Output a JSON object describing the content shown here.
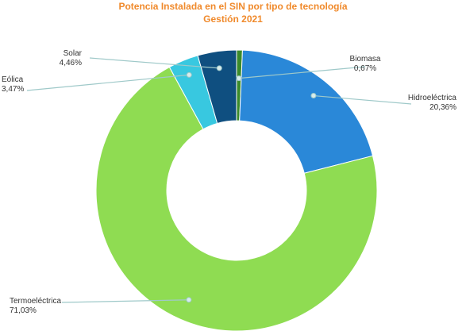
{
  "chart_data": {
    "type": "pie",
    "donut": true,
    "title": "Potencia Instalada en el SIN por tipo de tecnología",
    "subtitle": "Gestión 2021",
    "legend": "none",
    "slices": [
      {
        "name": "Biomasa",
        "value": 0.67,
        "value_label": "0,67%",
        "color": "#3a8a2a"
      },
      {
        "name": "Hidroeléctrica",
        "value": 20.36,
        "value_label": "20,36%",
        "color": "#2a88d8"
      },
      {
        "name": "Termoeléctrica",
        "value": 71.03,
        "value_label": "71,03%",
        "color": "#8fdc52"
      },
      {
        "name": "Eólica",
        "value": 3.47,
        "value_label": "3,47%",
        "color": "#38c8e0"
      },
      {
        "name": "Solar",
        "value": 4.46,
        "value_label": "4,46%",
        "color": "#0f4f80"
      }
    ]
  }
}
